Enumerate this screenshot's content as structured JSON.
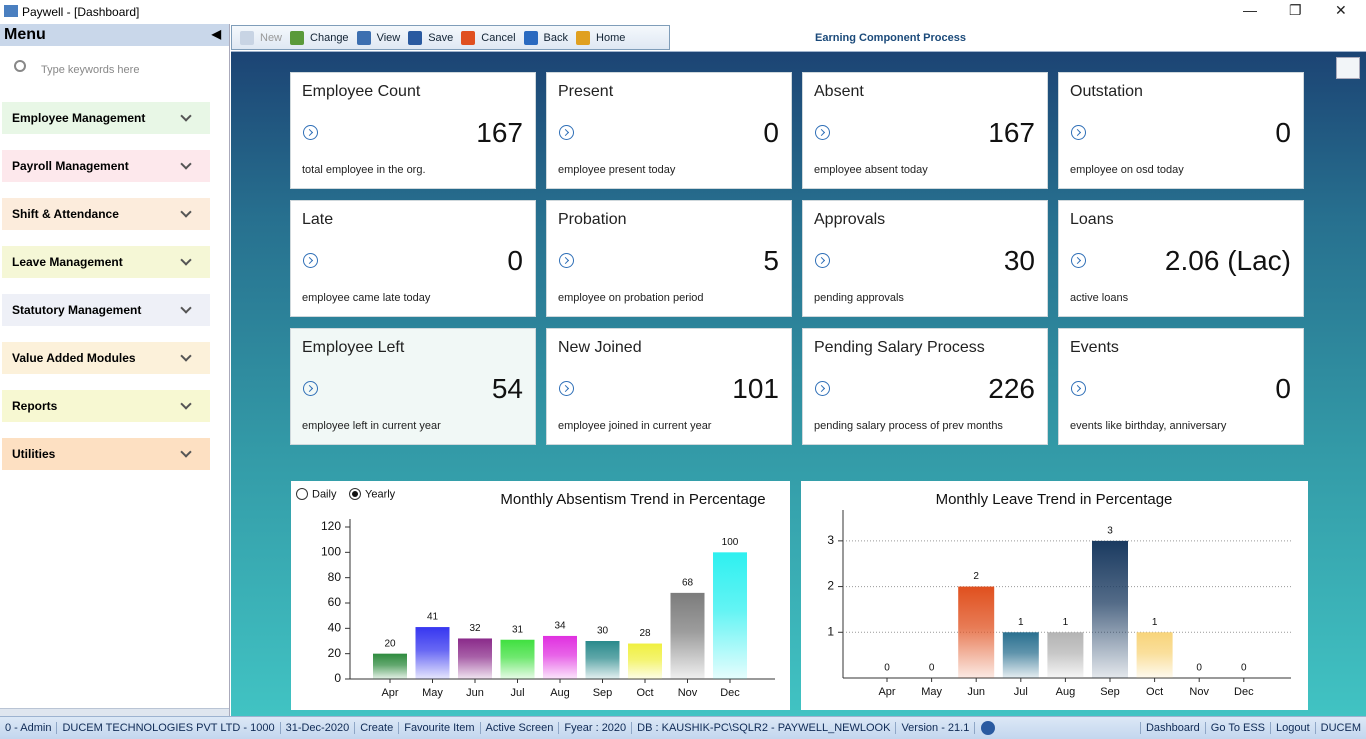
{
  "window": {
    "title": "Paywell - [Dashboard]"
  },
  "menu": {
    "title": "Menu",
    "search_placeholder": "Type keywords here",
    "items": [
      "Employee Management",
      "Payroll Management",
      "Shift & Attendance",
      "Leave Management",
      "Statutory Management",
      "Value Added Modules",
      "Reports",
      "Utilities"
    ]
  },
  "toolbar": {
    "buttons": [
      "New",
      "Change",
      "View",
      "Save",
      "Cancel",
      "Back",
      "Home"
    ],
    "screen_title": "Earning Component Process"
  },
  "cards": [
    {
      "title": "Employee Count",
      "value": 167,
      "caption": "total employee in the org."
    },
    {
      "title": "Present",
      "value": 0,
      "caption": "employee present today"
    },
    {
      "title": "Absent",
      "value": 167,
      "caption": "employee absent today"
    },
    {
      "title": "Outstation",
      "value": 0,
      "caption": "employee on osd today"
    },
    {
      "title": "Late",
      "value": 0,
      "caption": "employee came late today"
    },
    {
      "title": "Probation",
      "value": 5,
      "caption": "employee on probation period"
    },
    {
      "title": "Approvals",
      "value": 30,
      "caption": "pending approvals"
    },
    {
      "title": "Loans",
      "value": "2.06 (Lac)",
      "caption": "active loans"
    },
    {
      "title": "Employee Left",
      "value": 54,
      "caption": "employee left in current year"
    },
    {
      "title": "New Joined",
      "value": 101,
      "caption": "employee joined in current year"
    },
    {
      "title": "Pending Salary Process",
      "value": 226,
      "caption": "pending salary process of prev months"
    },
    {
      "title": "Events",
      "value": 0,
      "caption": "events like birthday, anniversary"
    }
  ],
  "chart_data": [
    {
      "type": "bar",
      "title": "Monthly Absentism Trend in Percentage",
      "options": [
        "Daily",
        "Yearly"
      ],
      "selected_option": 1,
      "categories": [
        "Apr",
        "May",
        "Jun",
        "Jul",
        "Aug",
        "Sep",
        "Oct",
        "Nov",
        "Dec"
      ],
      "values": [
        20,
        41,
        32,
        31,
        34,
        30,
        28,
        68,
        100
      ],
      "colors": [
        "#2e8b3e",
        "#3636f0",
        "#8a2a8a",
        "#40e040",
        "#e030e0",
        "#2a8a8c",
        "#f0f040",
        "#7c7c7c",
        "#2ef0f0"
      ],
      "ylim": [
        0,
        120
      ],
      "yticks": [
        0,
        20,
        40,
        60,
        80,
        100,
        120
      ],
      "grid": false
    },
    {
      "type": "bar",
      "title": "Monthly Leave Trend in Percentage",
      "categories": [
        "Apr",
        "May",
        "Jun",
        "Jul",
        "Aug",
        "Sep",
        "Oct",
        "Nov",
        "Dec"
      ],
      "values": [
        0,
        0,
        2,
        1,
        1,
        3,
        1,
        0,
        0
      ],
      "colors": [
        "#999999",
        "#999999",
        "#e0501e",
        "#2a7090",
        "#b4b4b4",
        "#1a3a60",
        "#f8d47a",
        "#999999",
        "#999999"
      ],
      "ylim": [
        0,
        3.5
      ],
      "yticks": [
        1,
        2,
        3
      ],
      "grid": true
    }
  ],
  "status_bar": {
    "items": [
      "0 - Admin",
      "DUCEM TECHNOLOGIES PVT LTD - 1000",
      "31-Dec-2020",
      "Create",
      "Favourite Item",
      "Active Screen",
      "Fyear : 2020",
      "DB : KAUSHIK-PC\\SQLR2  - PAYWELL_NEWLOOK",
      "Version - 21.1"
    ],
    "right_items": [
      "Dashboard",
      "Go To ESS",
      "Logout",
      "DUCEM"
    ]
  }
}
